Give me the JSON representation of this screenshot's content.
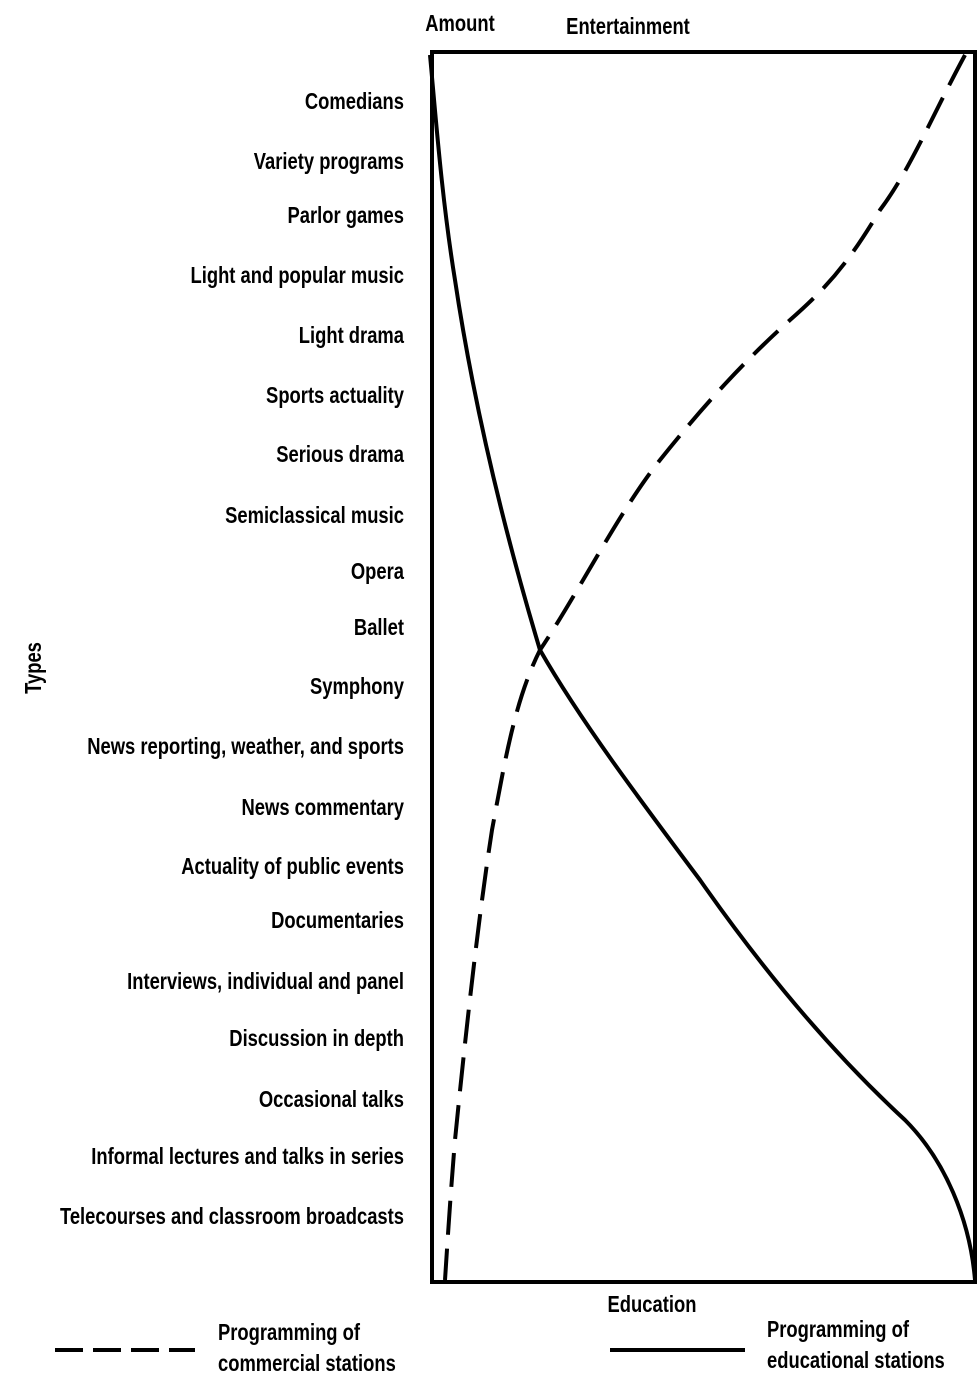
{
  "header": {
    "amount": "Amount",
    "entertainment": "Entertainment",
    "education": "Education",
    "axis_title": "Types"
  },
  "types": [
    "Comedians",
    "Variety programs",
    "Parlor games",
    "Light and popular music",
    "Light drama",
    "Sports actuality",
    "Serious drama",
    "Semiclassical music",
    "Opera",
    "Ballet",
    "Symphony",
    "News reporting, weather, and sports",
    "News commentary",
    "Actuality of public events",
    "Documentaries",
    "Interviews, individual and panel",
    "Discussion in depth",
    "Occasional talks",
    "Informal lectures and talks in series",
    "Telecourses and classroom broadcasts"
  ],
  "legend": {
    "commercial": [
      "Programming of",
      "commercial stations"
    ],
    "educational": [
      "Programming of",
      "educational stations"
    ]
  }
}
